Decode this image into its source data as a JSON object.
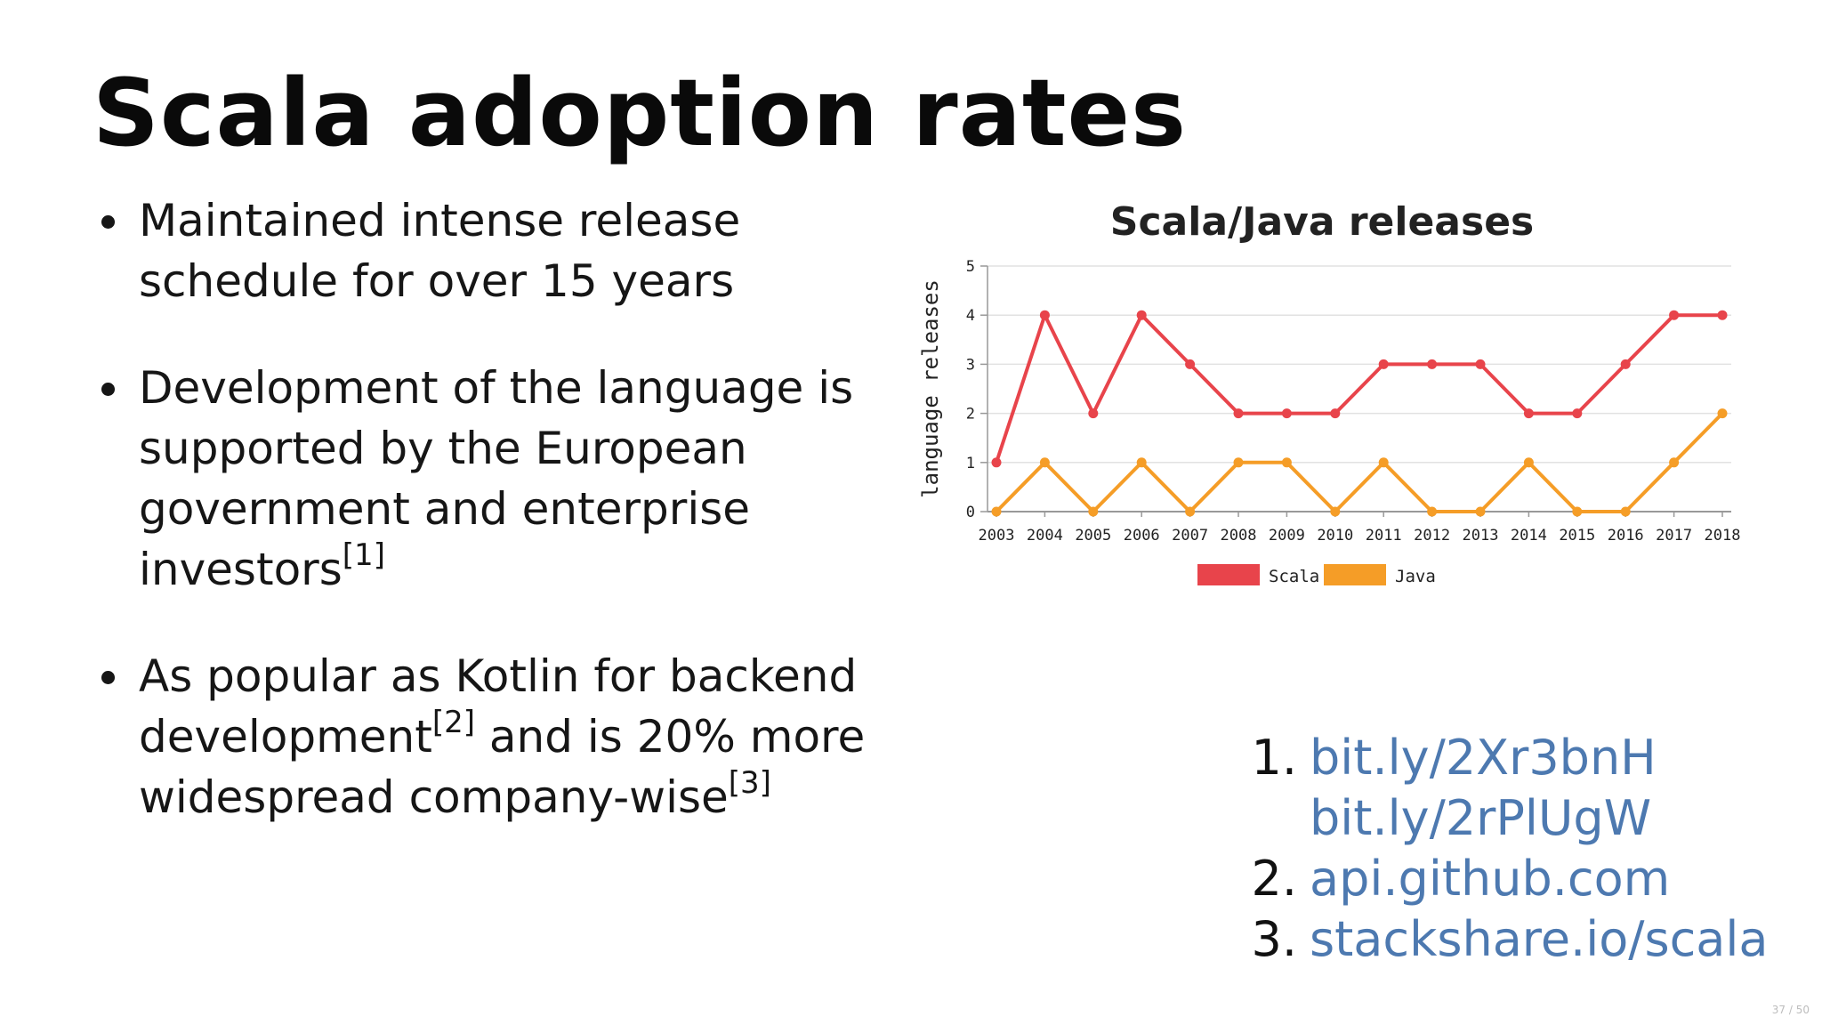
{
  "slide": {
    "title": "Scala adoption rates",
    "bullets": [
      {
        "text": "Maintained intense release schedule for over 15 years",
        "sup": ""
      },
      {
        "text": "Development of the language is supported by the European government and enterprise investors",
        "sup": "[1]"
      },
      {
        "pre": "As popular as Kotlin for backend development",
        "sup1": "[2]",
        "mid": " and is 20% more widespread company-wise",
        "sup2": "[3]"
      }
    ],
    "references": [
      {
        "num": "1.",
        "links": [
          "bit.ly/2Xr3bnH",
          "bit.ly/2rPlUgW"
        ]
      },
      {
        "num": "2.",
        "links": [
          "api.github.com"
        ]
      },
      {
        "num": "3.",
        "links": [
          "stackshare.io/scala"
        ]
      }
    ],
    "page_indicator": "37 / 50"
  },
  "chart_data": {
    "type": "line",
    "title": "Scala/Java releases",
    "xlabel": "",
    "ylabel": "language releases",
    "x": [
      "2003",
      "2004",
      "2005",
      "2006",
      "2007",
      "2008",
      "2009",
      "2010",
      "2011",
      "2012",
      "2013",
      "2014",
      "2015",
      "2016",
      "2017",
      "2018"
    ],
    "yticks": [
      "0",
      "1",
      "2",
      "3",
      "4",
      "5"
    ],
    "ylim": [
      0,
      5
    ],
    "grid": true,
    "legend": "bottom",
    "series": [
      {
        "name": "Scala",
        "color": "#e8444b",
        "values": [
          1,
          4,
          2,
          4,
          3,
          2,
          2,
          2,
          3,
          3,
          3,
          2,
          2,
          3,
          4,
          4
        ]
      },
      {
        "name": "Java",
        "color": "#f59d27",
        "values": [
          0,
          1,
          0,
          1,
          0,
          1,
          1,
          0,
          1,
          0,
          0,
          1,
          0,
          0,
          1,
          2
        ]
      }
    ]
  }
}
